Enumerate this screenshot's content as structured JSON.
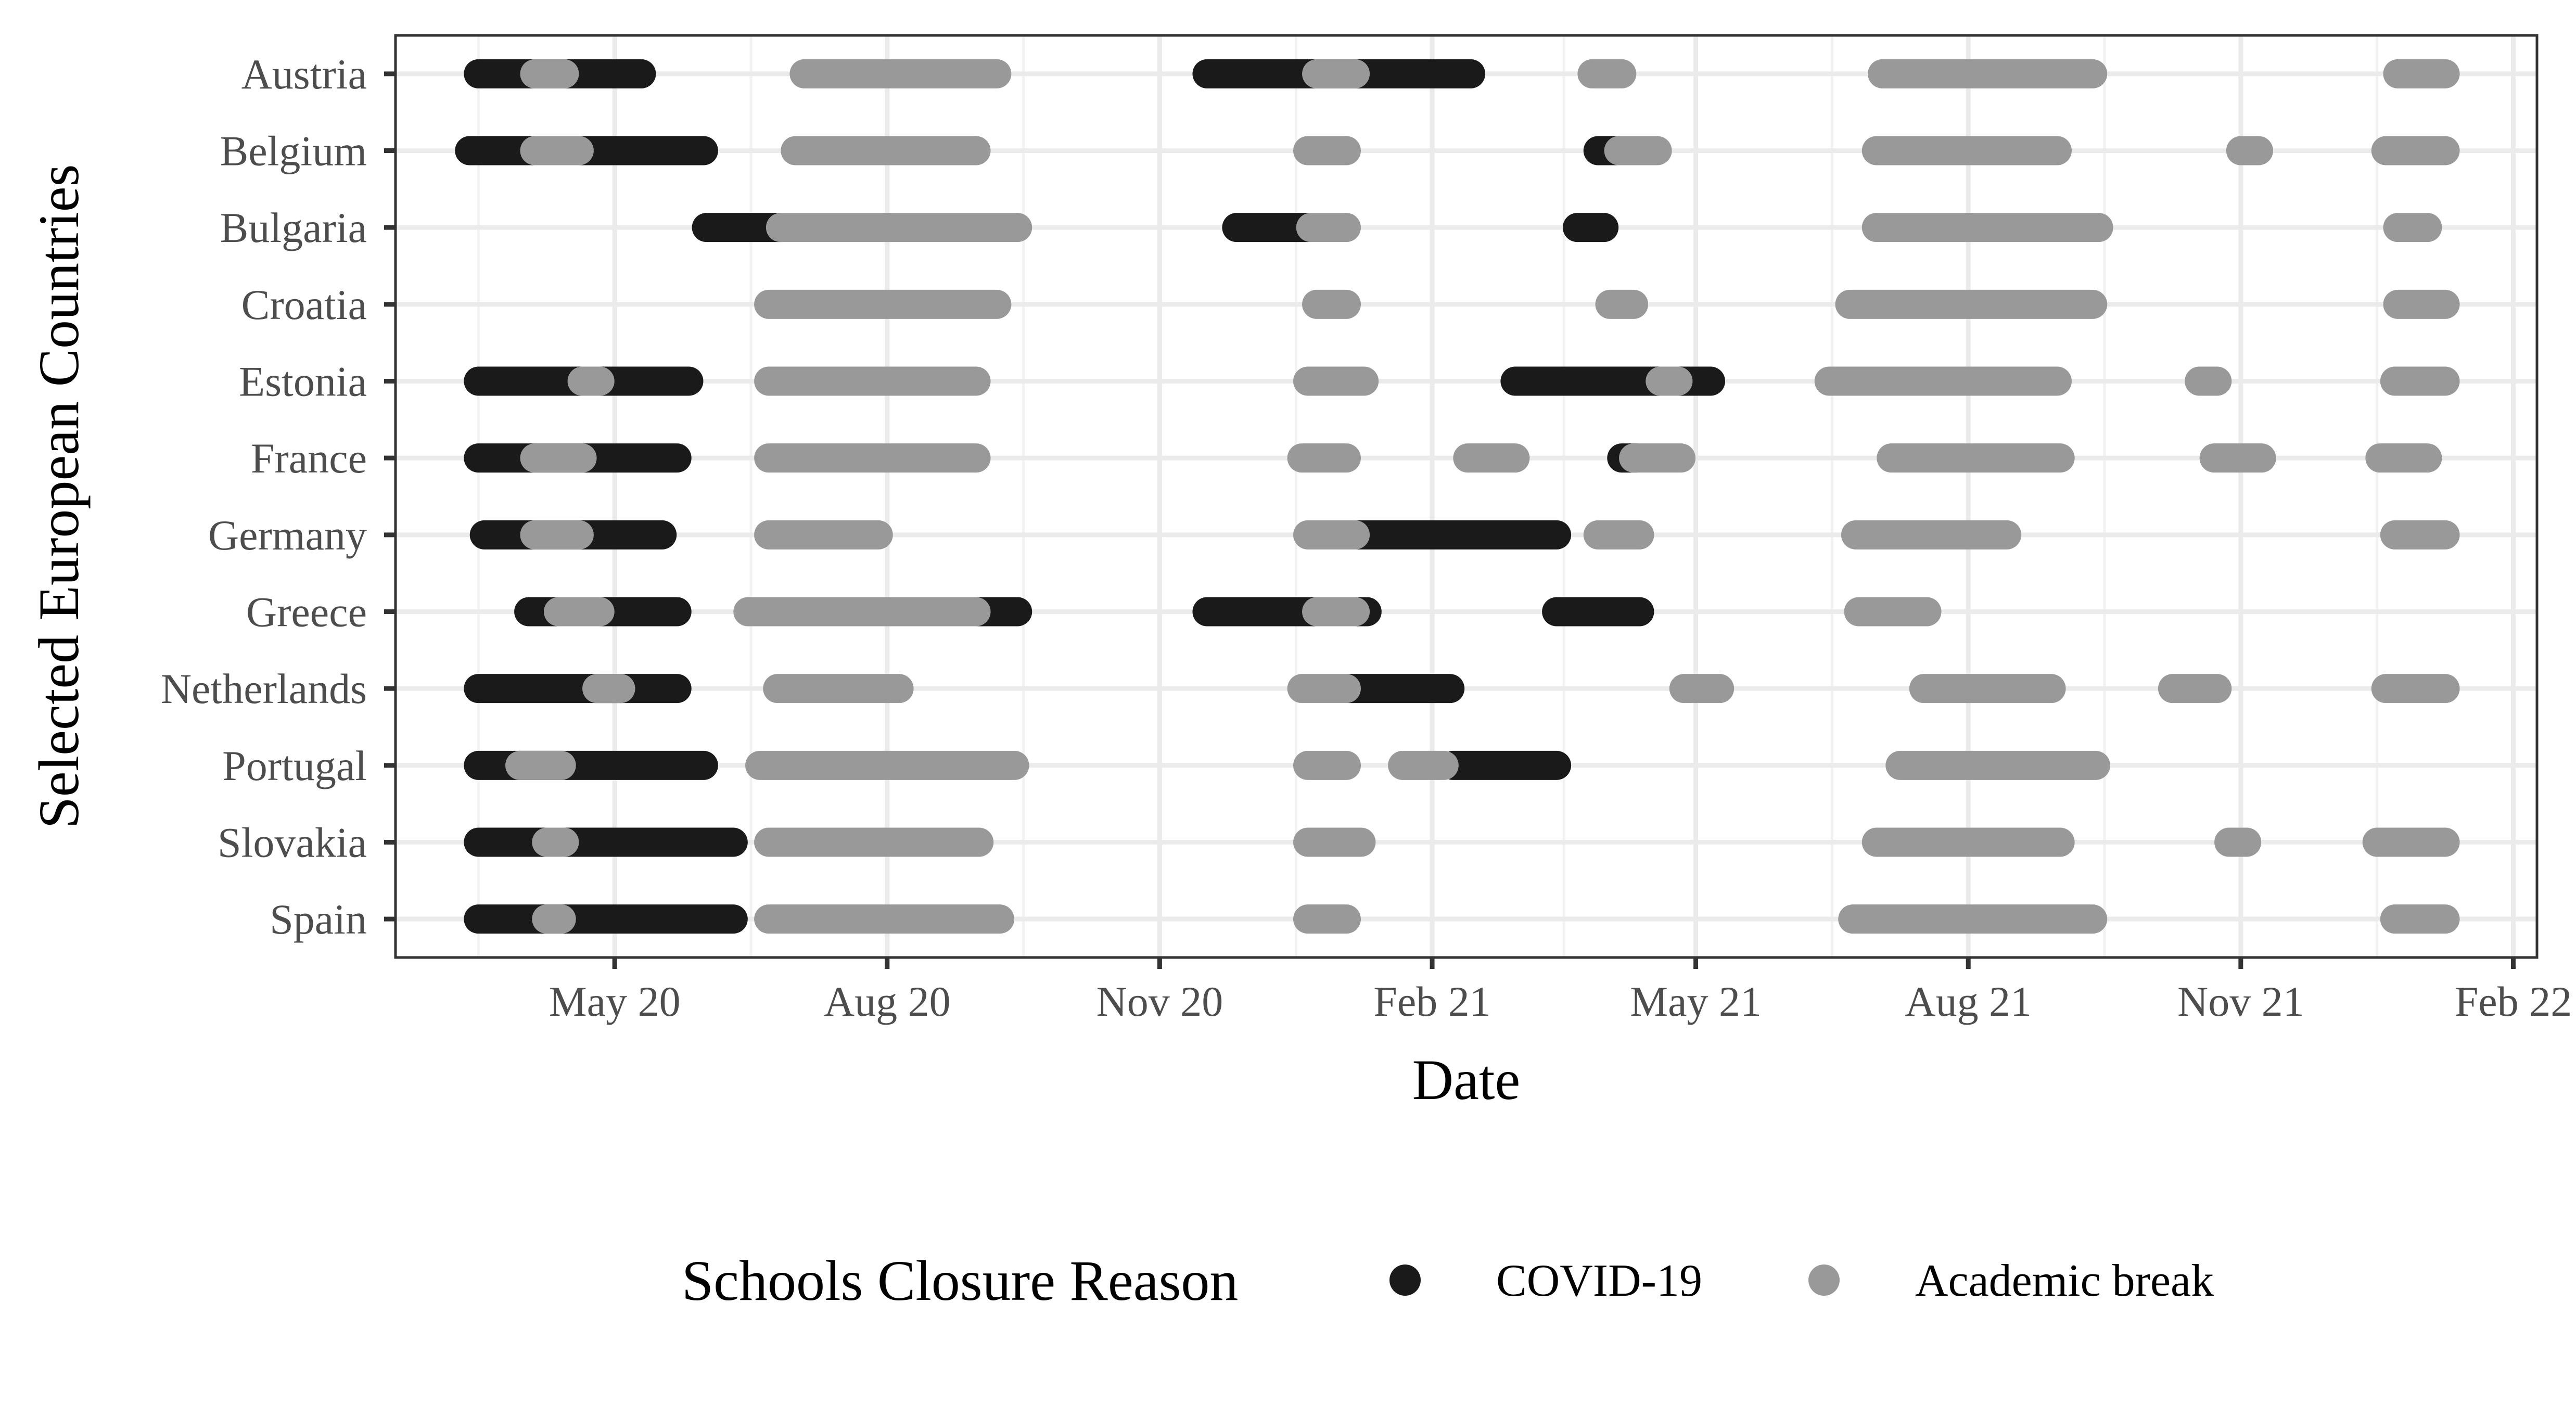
{
  "chart_data": {
    "type": "timeline",
    "xlabel": "Date",
    "ylabel": "Selected European Countries",
    "x_ticks": [
      {
        "date": "2020-05-01",
        "label": "May 20"
      },
      {
        "date": "2020-08-01",
        "label": "Aug 20"
      },
      {
        "date": "2020-11-01",
        "label": "Nov 20"
      },
      {
        "date": "2021-02-01",
        "label": "Feb 21"
      },
      {
        "date": "2021-05-01",
        "label": "May 21"
      },
      {
        "date": "2021-08-01",
        "label": "Aug 21"
      },
      {
        "date": "2021-11-01",
        "label": "Nov 21"
      },
      {
        "date": "2022-02-01",
        "label": "Feb 22"
      }
    ],
    "xlim": [
      "2020-02-17",
      "2022-02-09"
    ],
    "grid": true,
    "legend": {
      "title": "Schools Closure Reason",
      "position": "bottom",
      "entries": [
        {
          "name": "COVID-19",
          "color": "#1a1a1a"
        },
        {
          "name": "Academic break",
          "color": "#999999"
        }
      ]
    },
    "colors": {
      "COVID-19": "#1a1a1a",
      "Academic break": "#999999"
    },
    "countries": [
      "Austria",
      "Belgium",
      "Bulgaria",
      "Croatia",
      "Estonia",
      "France",
      "Germany",
      "Greece",
      "Netherlands",
      "Portugal",
      "Slovakia",
      "Spain"
    ],
    "closures": [
      {
        "country": "Austria",
        "reason": "COVID-19",
        "start": "2020-03-16",
        "end": "2020-05-10"
      },
      {
        "country": "Austria",
        "reason": "Academic break",
        "start": "2020-04-04",
        "end": "2020-04-14"
      },
      {
        "country": "Austria",
        "reason": "Academic break",
        "start": "2020-07-04",
        "end": "2020-09-07"
      },
      {
        "country": "Austria",
        "reason": "COVID-19",
        "start": "2020-11-17",
        "end": "2021-02-14"
      },
      {
        "country": "Austria",
        "reason": "Academic break",
        "start": "2020-12-24",
        "end": "2021-01-06"
      },
      {
        "country": "Austria",
        "reason": "Academic break",
        "start": "2021-03-27",
        "end": "2021-04-06"
      },
      {
        "country": "Austria",
        "reason": "Academic break",
        "start": "2021-07-03",
        "end": "2021-09-12"
      },
      {
        "country": "Austria",
        "reason": "Academic break",
        "start": "2021-12-24",
        "end": "2022-01-09"
      },
      {
        "country": "Belgium",
        "reason": "COVID-19",
        "start": "2020-03-13",
        "end": "2020-05-31"
      },
      {
        "country": "Belgium",
        "reason": "Academic break",
        "start": "2020-04-04",
        "end": "2020-04-19"
      },
      {
        "country": "Belgium",
        "reason": "Academic break",
        "start": "2020-07-01",
        "end": "2020-08-31"
      },
      {
        "country": "Belgium",
        "reason": "Academic break",
        "start": "2020-12-21",
        "end": "2021-01-03"
      },
      {
        "country": "Belgium",
        "reason": "COVID-19",
        "start": "2021-03-29",
        "end": "2021-04-04"
      },
      {
        "country": "Belgium",
        "reason": "Academic break",
        "start": "2021-04-05",
        "end": "2021-04-18"
      },
      {
        "country": "Belgium",
        "reason": "Academic break",
        "start": "2021-07-01",
        "end": "2021-08-31"
      },
      {
        "country": "Belgium",
        "reason": "Academic break",
        "start": "2021-11-01",
        "end": "2021-11-07"
      },
      {
        "country": "Belgium",
        "reason": "Academic break",
        "start": "2021-12-20",
        "end": "2022-01-09"
      },
      {
        "country": "Bulgaria",
        "reason": "COVID-19",
        "start": "2020-06-01",
        "end": "2020-06-26"
      },
      {
        "country": "Bulgaria",
        "reason": "Academic break",
        "start": "2020-06-26",
        "end": "2020-09-14"
      },
      {
        "country": "Bulgaria",
        "reason": "COVID-19",
        "start": "2020-11-27",
        "end": "2020-12-21"
      },
      {
        "country": "Bulgaria",
        "reason": "Academic break",
        "start": "2020-12-22",
        "end": "2021-01-03"
      },
      {
        "country": "Bulgaria",
        "reason": "COVID-19",
        "start": "2021-03-22",
        "end": "2021-03-31"
      },
      {
        "country": "Bulgaria",
        "reason": "Academic break",
        "start": "2021-07-01",
        "end": "2021-09-14"
      },
      {
        "country": "Bulgaria",
        "reason": "Academic break",
        "start": "2021-12-24",
        "end": "2022-01-03"
      },
      {
        "country": "Croatia",
        "reason": "Academic break",
        "start": "2020-06-22",
        "end": "2020-09-07"
      },
      {
        "country": "Croatia",
        "reason": "Academic break",
        "start": "2020-12-24",
        "end": "2021-01-03"
      },
      {
        "country": "Croatia",
        "reason": "Academic break",
        "start": "2021-04-02",
        "end": "2021-04-10"
      },
      {
        "country": "Croatia",
        "reason": "Academic break",
        "start": "2021-06-22",
        "end": "2021-09-12"
      },
      {
        "country": "Croatia",
        "reason": "Academic break",
        "start": "2021-12-24",
        "end": "2022-01-09"
      },
      {
        "country": "Estonia",
        "reason": "COVID-19",
        "start": "2020-03-16",
        "end": "2020-05-26"
      },
      {
        "country": "Estonia",
        "reason": "Academic break",
        "start": "2020-04-20",
        "end": "2020-04-26"
      },
      {
        "country": "Estonia",
        "reason": "Academic break",
        "start": "2020-06-22",
        "end": "2020-08-31"
      },
      {
        "country": "Estonia",
        "reason": "Academic break",
        "start": "2020-12-21",
        "end": "2021-01-09"
      },
      {
        "country": "Estonia",
        "reason": "COVID-19",
        "start": "2021-03-01",
        "end": "2021-05-06"
      },
      {
        "country": "Estonia",
        "reason": "Academic break",
        "start": "2021-04-19",
        "end": "2021-04-25"
      },
      {
        "country": "Estonia",
        "reason": "Academic break",
        "start": "2021-06-15",
        "end": "2021-08-31"
      },
      {
        "country": "Estonia",
        "reason": "Academic break",
        "start": "2021-10-18",
        "end": "2021-10-24"
      },
      {
        "country": "Estonia",
        "reason": "Academic break",
        "start": "2021-12-23",
        "end": "2022-01-09"
      },
      {
        "country": "France",
        "reason": "COVID-19",
        "start": "2020-03-16",
        "end": "2020-05-22"
      },
      {
        "country": "France",
        "reason": "Academic break",
        "start": "2020-04-04",
        "end": "2020-04-20"
      },
      {
        "country": "France",
        "reason": "Academic break",
        "start": "2020-06-22",
        "end": "2020-08-31"
      },
      {
        "country": "France",
        "reason": "Academic break",
        "start": "2020-12-19",
        "end": "2021-01-03"
      },
      {
        "country": "France",
        "reason": "Academic break",
        "start": "2021-02-13",
        "end": "2021-03-01"
      },
      {
        "country": "France",
        "reason": "COVID-19",
        "start": "2021-04-06",
        "end": "2021-04-11"
      },
      {
        "country": "France",
        "reason": "Academic break",
        "start": "2021-04-10",
        "end": "2021-04-26"
      },
      {
        "country": "France",
        "reason": "Academic break",
        "start": "2021-07-06",
        "end": "2021-09-01"
      },
      {
        "country": "France",
        "reason": "Academic break",
        "start": "2021-10-23",
        "end": "2021-11-08"
      },
      {
        "country": "France",
        "reason": "Academic break",
        "start": "2021-12-18",
        "end": "2022-01-03"
      },
      {
        "country": "Germany",
        "reason": "COVID-19",
        "start": "2020-03-18",
        "end": "2020-05-17"
      },
      {
        "country": "Germany",
        "reason": "Academic break",
        "start": "2020-04-04",
        "end": "2020-04-19"
      },
      {
        "country": "Germany",
        "reason": "Academic break",
        "start": "2020-06-22",
        "end": "2020-07-29"
      },
      {
        "country": "Germany",
        "reason": "Academic break",
        "start": "2020-12-21",
        "end": "2021-01-06"
      },
      {
        "country": "Germany",
        "reason": "COVID-19",
        "start": "2021-01-07",
        "end": "2021-03-15"
      },
      {
        "country": "Germany",
        "reason": "Academic break",
        "start": "2021-03-29",
        "end": "2021-04-12"
      },
      {
        "country": "Germany",
        "reason": "Academic break",
        "start": "2021-06-24",
        "end": "2021-08-14"
      },
      {
        "country": "Germany",
        "reason": "Academic break",
        "start": "2021-12-23",
        "end": "2022-01-09"
      },
      {
        "country": "Greece",
        "reason": "COVID-19",
        "start": "2020-04-02",
        "end": "2020-05-22"
      },
      {
        "country": "Greece",
        "reason": "Academic break",
        "start": "2020-04-12",
        "end": "2020-04-26"
      },
      {
        "country": "Greece",
        "reason": "Academic break",
        "start": "2020-06-15",
        "end": "2020-08-31"
      },
      {
        "country": "Greece",
        "reason": "COVID-19",
        "start": "2020-08-31",
        "end": "2020-09-14"
      },
      {
        "country": "Greece",
        "reason": "COVID-19",
        "start": "2020-11-17",
        "end": "2021-01-10"
      },
      {
        "country": "Greece",
        "reason": "Academic break",
        "start": "2020-12-24",
        "end": "2021-01-06"
      },
      {
        "country": "Greece",
        "reason": "COVID-19",
        "start": "2021-03-15",
        "end": "2021-04-12"
      },
      {
        "country": "Greece",
        "reason": "Academic break",
        "start": "2021-06-25",
        "end": "2021-07-18"
      },
      {
        "country": "Netherlands",
        "reason": "COVID-19",
        "start": "2020-03-16",
        "end": "2020-05-22"
      },
      {
        "country": "Netherlands",
        "reason": "Academic break",
        "start": "2020-04-25",
        "end": "2020-05-03"
      },
      {
        "country": "Netherlands",
        "reason": "Academic break",
        "start": "2020-06-25",
        "end": "2020-08-05"
      },
      {
        "country": "Netherlands",
        "reason": "Academic break",
        "start": "2020-12-19",
        "end": "2021-01-03"
      },
      {
        "country": "Netherlands",
        "reason": "COVID-19",
        "start": "2021-01-04",
        "end": "2021-02-07"
      },
      {
        "country": "Netherlands",
        "reason": "Academic break",
        "start": "2021-04-27",
        "end": "2021-05-09"
      },
      {
        "country": "Netherlands",
        "reason": "Academic break",
        "start": "2021-07-17",
        "end": "2021-08-29"
      },
      {
        "country": "Netherlands",
        "reason": "Academic break",
        "start": "2021-10-09",
        "end": "2021-10-24"
      },
      {
        "country": "Netherlands",
        "reason": "Academic break",
        "start": "2021-12-20",
        "end": "2022-01-09"
      },
      {
        "country": "Portugal",
        "reason": "COVID-19",
        "start": "2020-03-16",
        "end": "2020-05-31"
      },
      {
        "country": "Portugal",
        "reason": "Academic break",
        "start": "2020-03-30",
        "end": "2020-04-13"
      },
      {
        "country": "Portugal",
        "reason": "Academic break",
        "start": "2020-06-19",
        "end": "2020-09-13"
      },
      {
        "country": "Portugal",
        "reason": "Academic break",
        "start": "2020-12-21",
        "end": "2021-01-03"
      },
      {
        "country": "Portugal",
        "reason": "Academic break",
        "start": "2021-01-22",
        "end": "2021-02-05"
      },
      {
        "country": "Portugal",
        "reason": "COVID-19",
        "start": "2021-02-08",
        "end": "2021-03-15"
      },
      {
        "country": "Portugal",
        "reason": "Academic break",
        "start": "2021-07-09",
        "end": "2021-09-13"
      },
      {
        "country": "Slovakia",
        "reason": "COVID-19",
        "start": "2020-03-16",
        "end": "2020-06-10"
      },
      {
        "country": "Slovakia",
        "reason": "Academic break",
        "start": "2020-04-08",
        "end": "2020-04-14"
      },
      {
        "country": "Slovakia",
        "reason": "Academic break",
        "start": "2020-06-22",
        "end": "2020-09-01"
      },
      {
        "country": "Slovakia",
        "reason": "Academic break",
        "start": "2020-12-21",
        "end": "2021-01-08"
      },
      {
        "country": "Slovakia",
        "reason": "Academic break",
        "start": "2021-07-01",
        "end": "2021-09-01"
      },
      {
        "country": "Slovakia",
        "reason": "Academic break",
        "start": "2021-10-28",
        "end": "2021-11-03"
      },
      {
        "country": "Slovakia",
        "reason": "Academic break",
        "start": "2021-12-17",
        "end": "2022-01-09"
      },
      {
        "country": "Spain",
        "reason": "COVID-19",
        "start": "2020-03-16",
        "end": "2020-06-10"
      },
      {
        "country": "Spain",
        "reason": "Academic break",
        "start": "2020-04-08",
        "end": "2020-04-13"
      },
      {
        "country": "Spain",
        "reason": "Academic break",
        "start": "2020-06-22",
        "end": "2020-09-08"
      },
      {
        "country": "Spain",
        "reason": "Academic break",
        "start": "2020-12-21",
        "end": "2021-01-03"
      },
      {
        "country": "Spain",
        "reason": "Academic break",
        "start": "2021-06-23",
        "end": "2021-09-12"
      },
      {
        "country": "Spain",
        "reason": "Academic break",
        "start": "2021-12-23",
        "end": "2022-01-09"
      }
    ]
  }
}
